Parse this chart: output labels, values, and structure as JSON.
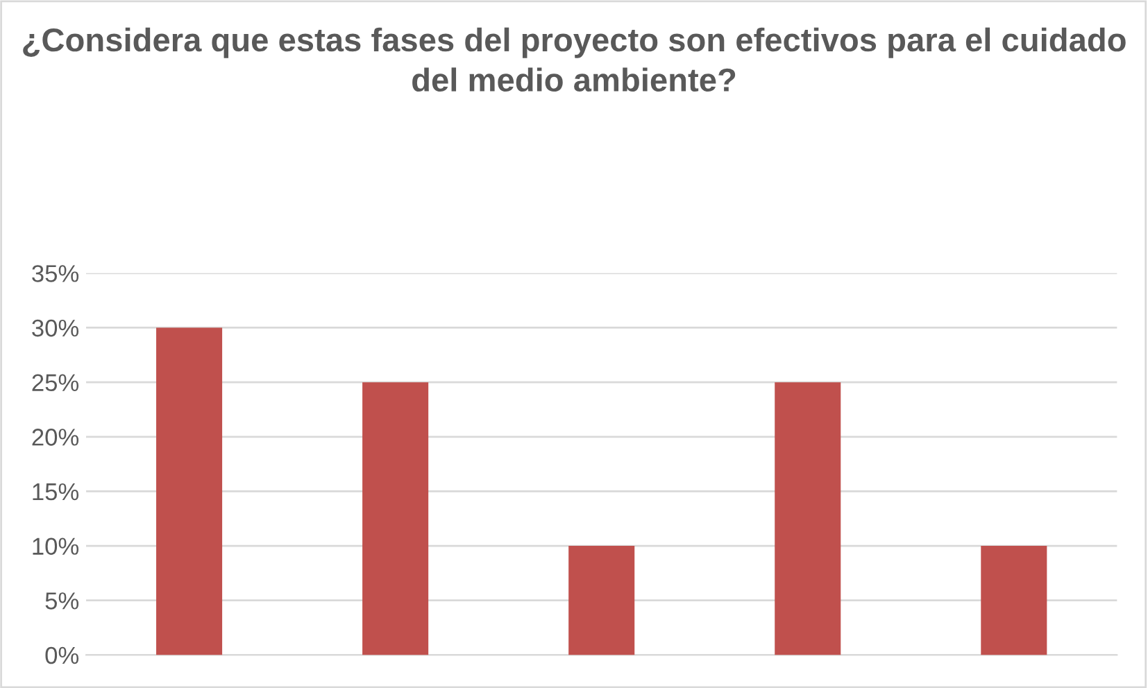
{
  "chart_data": {
    "type": "bar",
    "title": "¿Considera que estas fases del proyecto son efectivos para el cuidado del medio ambiente?",
    "categories": [
      null,
      null,
      null,
      null,
      null
    ],
    "values": [
      30,
      25,
      10,
      25,
      10
    ],
    "color": "#c0504d",
    "ylim": [
      0,
      35
    ],
    "yticks": [
      {
        "value": 0,
        "label": "0%"
      },
      {
        "value": 5,
        "label": "5%"
      },
      {
        "value": 10,
        "label": "10%"
      },
      {
        "value": 15,
        "label": "15%"
      },
      {
        "value": 20,
        "label": "20%"
      },
      {
        "value": 25,
        "label": "25%"
      },
      {
        "value": 30,
        "label": "30%"
      },
      {
        "value": 35,
        "label": "35%"
      }
    ],
    "grid": "y"
  }
}
